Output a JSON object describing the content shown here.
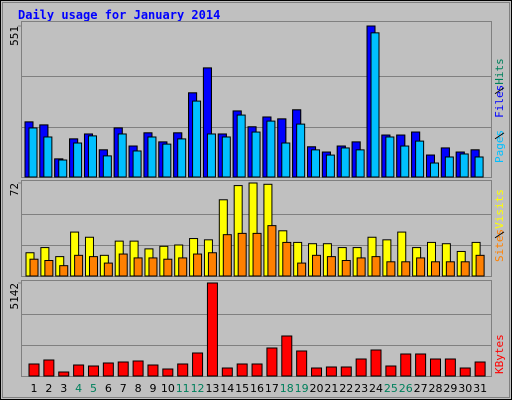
{
  "chart_data": [
    {
      "type": "bar",
      "title": "Daily usage for January 2014",
      "ylim": [
        0,
        551
      ],
      "yticks": [
        551
      ],
      "series": [
        {
          "name": "Hits",
          "color": "#00805c",
          "values": [
            201,
            190,
            66,
            139,
            157,
            99,
            179,
            113,
            161,
            128,
            161,
            307,
            398,
            157,
            241,
            183,
            219,
            212,
            245,
            110,
            91,
            113,
            128,
            551,
            153,
            153,
            164,
            80,
            106,
            91,
            99
          ]
        },
        {
          "name": "Files",
          "color": "#0000ff",
          "values": [
            201,
            190,
            66,
            139,
            157,
            99,
            179,
            113,
            161,
            128,
            161,
            307,
            398,
            157,
            241,
            183,
            219,
            212,
            245,
            110,
            91,
            113,
            128,
            551,
            153,
            153,
            164,
            80,
            106,
            91,
            99
          ]
        },
        {
          "name": "Pages",
          "color": "#00c0ff",
          "values": [
            179,
            146,
            62,
            124,
            150,
            77,
            157,
            95,
            146,
            120,
            139,
            277,
            157,
            146,
            226,
            164,
            204,
            124,
            193,
            99,
            80,
            106,
            99,
            526,
            146,
            113,
            131,
            51,
            73,
            84,
            73
          ]
        }
      ]
    },
    {
      "type": "bar",
      "ylim": [
        0,
        72
      ],
      "yticks": [
        72
      ],
      "series": [
        {
          "name": "Visits",
          "color": "#ffff00",
          "values": [
            18,
            22,
            15,
            34,
            30,
            16,
            27,
            27,
            21,
            23,
            24,
            29,
            28,
            59,
            70,
            72,
            71,
            35,
            26,
            25,
            25,
            22,
            22,
            30,
            28,
            34,
            22,
            26,
            25,
            19,
            26
          ]
        },
        {
          "name": "Sites",
          "color": "#ff8000",
          "values": [
            13,
            12,
            8,
            16,
            15,
            10,
            17,
            14,
            14,
            13,
            14,
            17,
            18,
            32,
            33,
            33,
            39,
            26,
            10,
            16,
            15,
            12,
            14,
            15,
            11,
            11,
            14,
            11,
            11,
            11,
            16
          ]
        }
      ]
    },
    {
      "type": "bar",
      "ylim": [
        0,
        5142
      ],
      "yticks": [
        5142
      ],
      "categories": [
        "1",
        "2",
        "3",
        "4",
        "5",
        "6",
        "7",
        "8",
        "9",
        "10",
        "11",
        "12",
        "13",
        "14",
        "15",
        "16",
        "17",
        "18",
        "19",
        "20",
        "21",
        "22",
        "23",
        "24",
        "25",
        "26",
        "27",
        "28",
        "29",
        "30",
        "31"
      ],
      "category_colors": [
        "#000000",
        "#000000",
        "#000000",
        "#00805c",
        "#00805c",
        "#000000",
        "#000000",
        "#000000",
        "#000000",
        "#000000",
        "#00805c",
        "#00805c",
        "#000000",
        "#000000",
        "#000000",
        "#000000",
        "#000000",
        "#00805c",
        "#00805c",
        "#000000",
        "#000000",
        "#000000",
        "#000000",
        "#000000",
        "#00805c",
        "#00805c",
        "#000000",
        "#000000",
        "#000000",
        "#000000",
        "#000000"
      ],
      "series": [
        {
          "name": "KBytes",
          "color": "#ff0000",
          "values": [
            664,
            885,
            221,
            608,
            553,
            719,
            774,
            830,
            608,
            387,
            664,
            1272,
            5142,
            442,
            664,
            664,
            1548,
            2212,
            1383,
            442,
            498,
            498,
            940,
            1438,
            553,
            1217,
            1217,
            940,
            940,
            442,
            774
          ]
        }
      ]
    }
  ]
}
